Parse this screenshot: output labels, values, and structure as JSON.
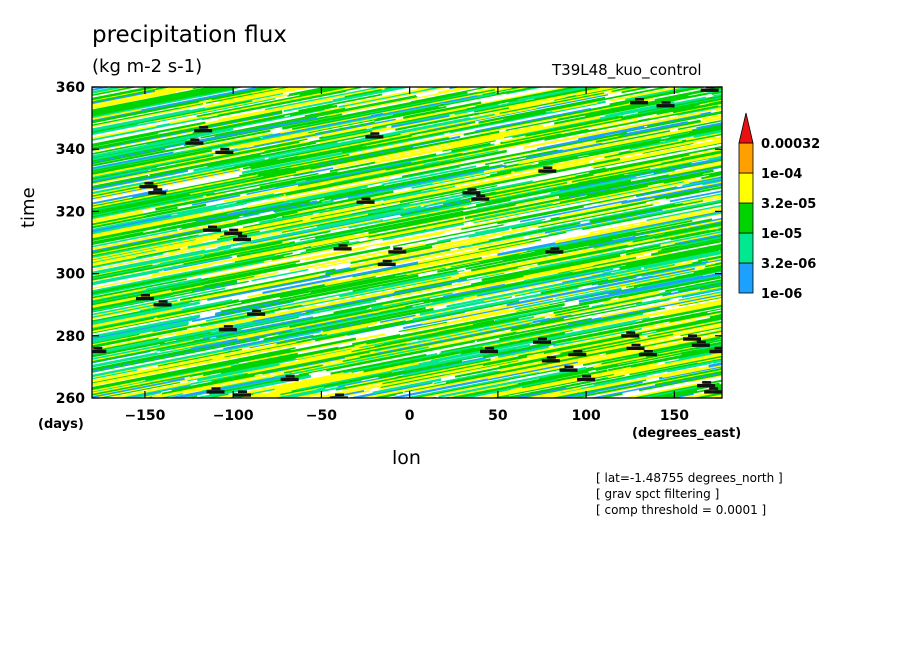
{
  "chart_data": {
    "type": "heatmap",
    "title": "precipitation flux",
    "units": "(kg m-2 s-1)",
    "dataset": "T39L48_kuo_control",
    "xlabel": "lon",
    "ylabel": "time",
    "x_units": "(degrees_east)",
    "y_units": "(days)",
    "xlim": [
      -180,
      177
    ],
    "ylim": [
      260,
      360
    ],
    "x_ticks": [
      -150,
      -100,
      -50,
      0,
      50,
      100,
      150
    ],
    "y_ticks": [
      260,
      280,
      300,
      320,
      340,
      360
    ],
    "x_tick_labels": [
      "−150",
      "−100",
      "−50",
      "0",
      "50",
      "100",
      "150"
    ],
    "y_tick_labels": [
      "260",
      "280",
      "300",
      "320",
      "340",
      "360"
    ],
    "band_slope_deg_per_day": -9,
    "colorbar": {
      "levels": [
        "1e-06",
        "3.2e-06",
        "1e-05",
        "3.2e-05",
        "1e-04",
        "0.00032"
      ],
      "colors": [
        "#ffffff",
        "#1ea0ff",
        "#00e890",
        "#00d400",
        "#ffff00",
        "#ffa000",
        "#e81010"
      ]
    },
    "annotations": [
      "[ lat=-1.48755 degrees_north ]",
      "[ grav spct filtering ]",
      "[ comp threshold = 0.0001 ]"
    ],
    "high_precip_cells": [
      [
        -117,
        346
      ],
      [
        -122,
        342
      ],
      [
        -105,
        339
      ],
      [
        -148,
        328
      ],
      [
        -143,
        326
      ],
      [
        -112,
        314
      ],
      [
        -100,
        313
      ],
      [
        -95,
        311
      ],
      [
        -103,
        282
      ],
      [
        -150,
        292
      ],
      [
        -140,
        290
      ],
      [
        -87,
        287
      ],
      [
        -20,
        344
      ],
      [
        -25,
        323
      ],
      [
        -38,
        308
      ],
      [
        -7,
        307
      ],
      [
        -13,
        303
      ],
      [
        35,
        326
      ],
      [
        40,
        324
      ],
      [
        78,
        333
      ],
      [
        82,
        307
      ],
      [
        75,
        278
      ],
      [
        80,
        272
      ],
      [
        90,
        269
      ],
      [
        95,
        274
      ],
      [
        100,
        266
      ],
      [
        45,
        275
      ],
      [
        125,
        280
      ],
      [
        128,
        276
      ],
      [
        135,
        274
      ],
      [
        130,
        355
      ],
      [
        145,
        354
      ],
      [
        160,
        279
      ],
      [
        165,
        277
      ],
      [
        175,
        275
      ],
      [
        168,
        264
      ],
      [
        172,
        262
      ],
      [
        -177,
        275
      ],
      [
        -110,
        262
      ],
      [
        -95,
        261
      ],
      [
        -68,
        266
      ],
      [
        -40,
        260
      ],
      [
        170,
        359
      ]
    ]
  }
}
